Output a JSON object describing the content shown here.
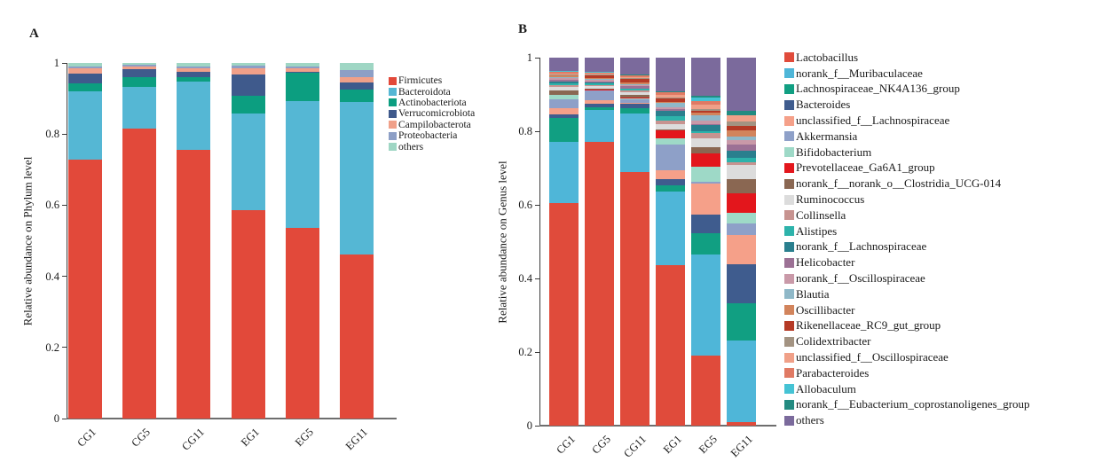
{
  "figure": {
    "panels": [
      {
        "label": "A"
      },
      {
        "label": "B"
      }
    ],
    "background": "#ffffff"
  },
  "chart_data": [
    {
      "type": "bar",
      "stacked": true,
      "title": "",
      "xlabel": "",
      "ylabel": "Relative abundance on Phylum level",
      "ylim": [
        0,
        1
      ],
      "yticks": [
        0,
        0.2,
        0.4,
        0.6,
        0.8,
        1
      ],
      "ytick_labels": [
        "0",
        "0.2",
        "0.4",
        "0.6",
        "0.8",
        "1"
      ],
      "grid": false,
      "legend_position": "right",
      "xtick_rotation": -45,
      "axis_color": "#6e6e6e",
      "categories": [
        "CG1",
        "CG5",
        "CG11",
        "EG1",
        "EG5",
        "EG11"
      ],
      "series": [
        {
          "name": "Firmicutes",
          "color": "#e2493a",
          "values": [
            0.727,
            0.815,
            0.755,
            0.585,
            0.535,
            0.462
          ]
        },
        {
          "name": "Bacteroidota",
          "color": "#55b7d4",
          "values": [
            0.194,
            0.118,
            0.193,
            0.272,
            0.359,
            0.428
          ]
        },
        {
          "name": "Actinobacteriota",
          "color": "#0c9e80",
          "values": [
            0.021,
            0.028,
            0.013,
            0.05,
            0.079,
            0.036
          ]
        },
        {
          "name": "Verrucomicrobiota",
          "color": "#3f5a8c",
          "values": [
            0.029,
            0.022,
            0.014,
            0.061,
            0.003,
            0.018
          ]
        },
        {
          "name": "Campilobacterota",
          "color": "#f0a089",
          "values": [
            0.015,
            0.007,
            0.01,
            0.017,
            0.009,
            0.017
          ]
        },
        {
          "name": "Proteobacteria",
          "color": "#8d9fc6",
          "values": [
            0.005,
            0.004,
            0.005,
            0.008,
            0.005,
            0.018
          ]
        },
        {
          "name": "others",
          "color": "#9fd6c4",
          "values": [
            0.009,
            0.006,
            0.01,
            0.007,
            0.01,
            0.021
          ]
        }
      ]
    },
    {
      "type": "bar",
      "stacked": true,
      "title": "",
      "xlabel": "",
      "ylabel": "Relative abundance on Genus level",
      "ylim": [
        0,
        1
      ],
      "yticks": [
        0,
        0.2,
        0.4,
        0.6,
        0.8,
        1
      ],
      "ytick_labels": [
        "0",
        "0.2",
        "0.4",
        "0.6",
        "0.8",
        "1"
      ],
      "grid": false,
      "legend_position": "right",
      "xtick_rotation": -45,
      "axis_color": "#6e6e6e",
      "categories": [
        "CG1",
        "CG5",
        "CG11",
        "EG1",
        "EG5",
        "EG11"
      ],
      "series": [
        {
          "name": "Lactobacillus",
          "color": "#e04b3b",
          "values": [
            0.605,
            0.772,
            0.689,
            0.435,
            0.19,
            0.01
          ]
        },
        {
          "name": "norank_f__Muribaculaceae",
          "color": "#4fb6d8",
          "values": [
            0.166,
            0.086,
            0.159,
            0.201,
            0.276,
            0.221
          ]
        },
        {
          "name": "Lachnospiraceae_NK4A136_group",
          "color": "#119f82",
          "values": [
            0.065,
            0.006,
            0.014,
            0.016,
            0.056,
            0.102
          ]
        },
        {
          "name": "Bacteroides",
          "color": "#3f5c8e",
          "values": [
            0.009,
            0.01,
            0.012,
            0.019,
            0.052,
            0.105
          ]
        },
        {
          "name": "unclassified_f__Lachnospiraceae",
          "color": "#f5a089",
          "values": [
            0.018,
            0.01,
            0.004,
            0.024,
            0.085,
            0.08
          ]
        },
        {
          "name": "Akkermansia",
          "color": "#8ea0c8",
          "values": [
            0.025,
            0.026,
            0.01,
            0.068,
            0.003,
            0.032
          ]
        },
        {
          "name": "Bifidobacterium",
          "color": "#9ed9c7",
          "values": [
            0.01,
            0.002,
            0.002,
            0.018,
            0.041,
            0.028
          ]
        },
        {
          "name": "Prevotellaceae_Ga6A1_group",
          "color": "#e3161c",
          "values": [
            0.002,
            0.001,
            0.001,
            0.021,
            0.036,
            0.053
          ]
        },
        {
          "name": "norank_f__norank_o__Clostridia_UCG-014",
          "color": "#8a6752",
          "values": [
            0.012,
            0.003,
            0.008,
            0.002,
            0.018,
            0.04
          ]
        },
        {
          "name": "Ruminococcus",
          "color": "#dcdcdc",
          "values": [
            0.008,
            0.006,
            0.007,
            0.015,
            0.024,
            0.037
          ]
        },
        {
          "name": "Collinsella",
          "color": "#c79390",
          "values": [
            0.005,
            0.003,
            0.004,
            0.01,
            0.014,
            0.009
          ]
        },
        {
          "name": "Alistipes",
          "color": "#2db3ab",
          "values": [
            0.006,
            0.005,
            0.005,
            0.013,
            0.004,
            0.01
          ]
        },
        {
          "name": "norank_f__Lachnospiraceae",
          "color": "#2a7f8e",
          "values": [
            0.003,
            0.002,
            0.002,
            0.014,
            0.017,
            0.02
          ]
        },
        {
          "name": "Helicobacter",
          "color": "#9c7195",
          "values": [
            0.006,
            0.004,
            0.005,
            0.005,
            0.004,
            0.018
          ]
        },
        {
          "name": "norank_f__Oscillospiraceae",
          "color": "#c999a8",
          "values": [
            0.005,
            0.003,
            0.004,
            0.005,
            0.01,
            0.011
          ]
        },
        {
          "name": "Blautia",
          "color": "#8fb8c8",
          "values": [
            0.003,
            0.003,
            0.003,
            0.011,
            0.014,
            0.011
          ]
        },
        {
          "name": "Oscillibacter",
          "color": "#d2845c",
          "values": [
            0.003,
            0.002,
            0.003,
            0.002,
            0.008,
            0.015
          ]
        },
        {
          "name": "Rikenellaceae_RC9_gut_group",
          "color": "#b53a26",
          "values": [
            0.002,
            0.008,
            0.01,
            0.011,
            0.003,
            0.014
          ]
        },
        {
          "name": "Colidextribacter",
          "color": "#a39382",
          "values": [
            0.002,
            0.002,
            0.002,
            0.002,
            0.006,
            0.011
          ]
        },
        {
          "name": "unclassified_f__Oscillospiraceae",
          "color": "#f0a088",
          "values": [
            0.003,
            0.002,
            0.003,
            0.006,
            0.012,
            0.016
          ]
        },
        {
          "name": "Parabacteroides",
          "color": "#e07a64",
          "values": [
            0.004,
            0.004,
            0.005,
            0.008,
            0.01,
            0.001
          ]
        },
        {
          "name": "Allobaculum",
          "color": "#45c3d4",
          "values": [
            0.001,
            0.001,
            0.001,
            0.001,
            0.008,
            0.001
          ]
        },
        {
          "name": "norank_f__Eubacterium_coprostanoligenes_group",
          "color": "#238b81",
          "values": [
            0.001,
            0.001,
            0.001,
            0.001,
            0.005,
            0.011
          ]
        },
        {
          "name": "others",
          "color": "#7b6a9c",
          "values": [
            0.036,
            0.038,
            0.046,
            0.092,
            0.104,
            0.144
          ]
        }
      ]
    }
  ]
}
